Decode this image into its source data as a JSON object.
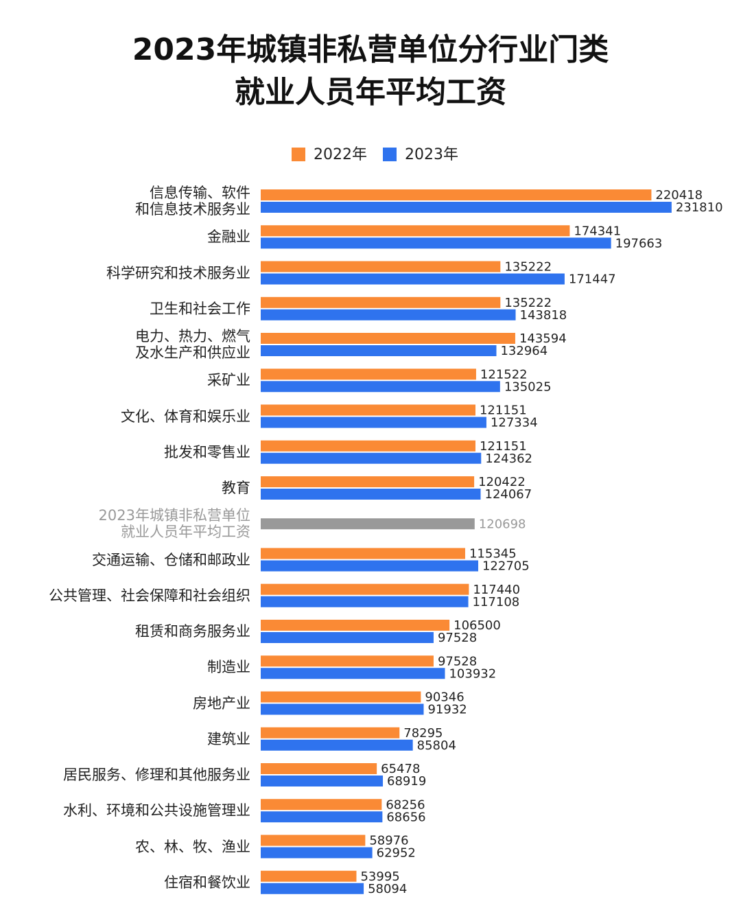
{
  "chart_data": {
    "type": "bar",
    "orientation": "horizontal",
    "title": "2023年城镇非私营单位分行业门类\n就业人员年平均工资",
    "categories": [
      "信息传输、软件\n和信息技术服务业",
      "金融业",
      "科学研究和技术服务业",
      "卫生和社会工作",
      "电力、热力、燃气\n及水生产和供应业",
      "采矿业",
      "文化、体育和娱乐业",
      "批发和零售业",
      "教育",
      "2023年城镇非私营单位\n就业人员年平均工资",
      "交通运输、仓储和邮政业",
      "公共管理、社会保障和社会组织",
      "租赁和商务服务业",
      "制造业",
      "房地产业",
      "建筑业",
      "居民服务、修理和其他服务业",
      "水利、环境和公共设施管理业",
      "农、林、牧、渔业",
      "住宿和餐饮业"
    ],
    "series": [
      {
        "name": "2022年",
        "color": "#fa8a35",
        "values": [
          220418,
          174341,
          135222,
          135222,
          143594,
          121522,
          121151,
          121151,
          120422,
          null,
          115345,
          117440,
          106500,
          97528,
          90346,
          78295,
          65478,
          68256,
          58976,
          53995
        ]
      },
      {
        "name": "2023年",
        "color": "#2f73ee",
        "values": [
          231810,
          197663,
          171447,
          143818,
          132964,
          135025,
          127334,
          124362,
          124067,
          null,
          122705,
          117108,
          97528,
          103932,
          91932,
          85804,
          68919,
          68656,
          62952,
          58094
        ]
      }
    ],
    "reference": {
      "value": 120698,
      "color": "#999999"
    },
    "xlim": [
      0,
      240000
    ],
    "legend": "top"
  }
}
